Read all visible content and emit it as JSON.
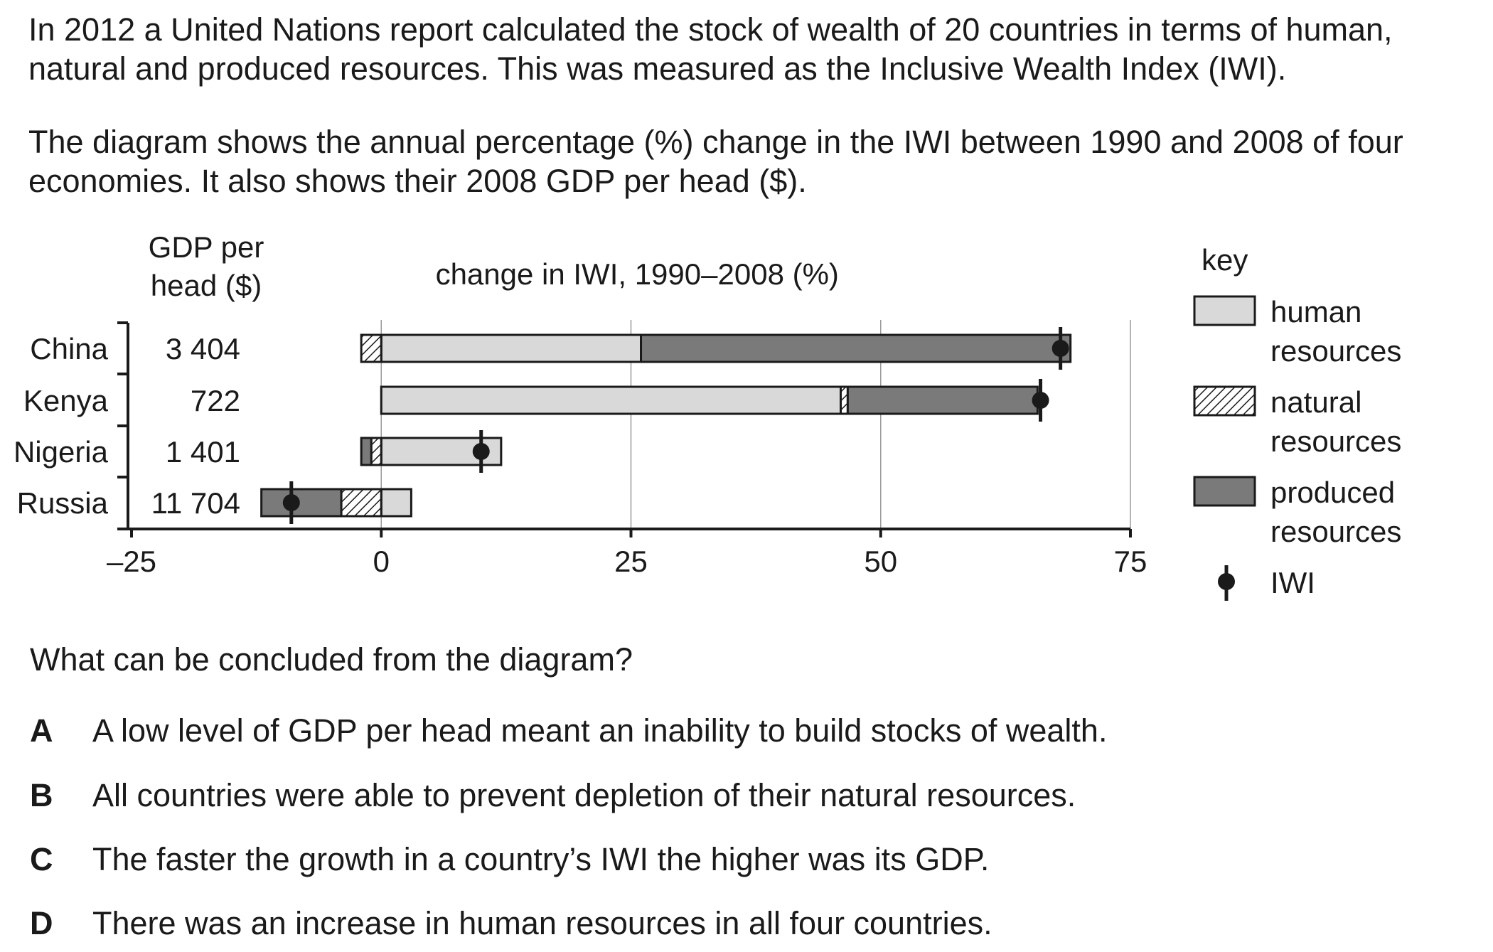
{
  "intro": {
    "paragraph1": "In 2012 a United Nations report calculated the stock of wealth of 20 countries in terms of human, natural and produced resources. This was measured as the Inclusive Wealth Index (IWI).",
    "paragraph2": "The diagram shows the annual percentage (%) change in the IWI between 1990 and 2008 of four economies. It also shows their 2008 GDP per head ($)."
  },
  "chart_data": {
    "type": "bar",
    "stacked": true,
    "orientation": "horizontal",
    "title": "change in IWI, 1990–2008 (%)",
    "gdp_header_line1": "GDP per",
    "gdp_header_line2": "head ($)",
    "categories": [
      "China",
      "Kenya",
      "Nigeria",
      "Russia"
    ],
    "gdp_per_head": [
      "3 404",
      "722",
      "1 401",
      "11 704"
    ],
    "series": [
      {
        "name": "human resources",
        "values": [
          26,
          46,
          12,
          3
        ],
        "color": "#d9d9d9"
      },
      {
        "name": "natural resources",
        "values": [
          -2,
          0.7,
          -1,
          -4
        ],
        "color": "hatch"
      },
      {
        "name": "produced resources",
        "values": [
          43,
          19,
          -1,
          -8
        ],
        "color": "#7a7a7a"
      }
    ],
    "iwi": [
      68,
      66,
      10,
      -9
    ],
    "xlim": [
      -25,
      75
    ],
    "xticks": [
      "–25",
      "0",
      "25",
      "50",
      "75"
    ],
    "xtick_values": [
      -25,
      0,
      25,
      50,
      75
    ],
    "grid": true,
    "legend": {
      "title": "key",
      "items": [
        {
          "line1": "human",
          "line2": "resources",
          "kind": "human"
        },
        {
          "line1": "natural",
          "line2": "resources",
          "kind": "natural"
        },
        {
          "line1": "produced",
          "line2": "resources",
          "kind": "produced"
        },
        {
          "line1": "IWI",
          "line2": "",
          "kind": "iwi"
        }
      ],
      "position": "right"
    }
  },
  "question": "What can be concluded from the diagram?",
  "options": [
    {
      "letter": "A",
      "text": "A low level of GDP per head meant an inability to build stocks of wealth."
    },
    {
      "letter": "B",
      "text": "All countries were able to prevent depletion of their natural resources."
    },
    {
      "letter": "C",
      "text": "The faster the growth in a country’s IWI the higher was its GDP."
    },
    {
      "letter": "D",
      "text": "There was an increase in human resources in all four countries."
    }
  ]
}
